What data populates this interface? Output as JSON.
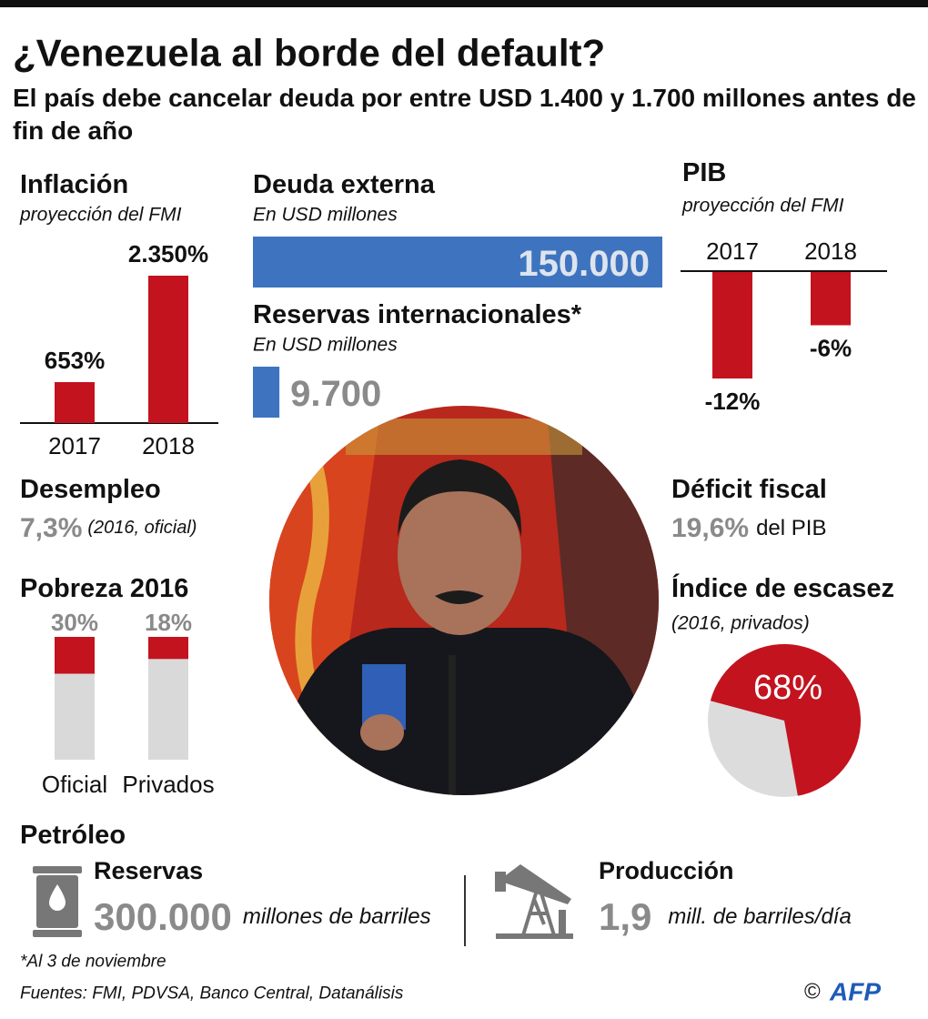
{
  "header": {
    "title": "¿Venezuela al borde del default?",
    "subtitle": "El país debe cancelar deuda por entre USD 1.400 y 1.700 millones antes de fin de año"
  },
  "chart_data": [
    {
      "type": "bar",
      "title": "Inflación",
      "subtitle": "proyección del FMI",
      "categories": [
        "2017",
        "2018"
      ],
      "values": [
        653,
        2350
      ],
      "value_labels": [
        "653%",
        "2.350%"
      ],
      "color": "#c3131f"
    },
    {
      "type": "hbar",
      "categories": [
        "Deuda externa",
        "Reservas internacionales*"
      ],
      "subtitles": [
        "En USD millones",
        "En USD millones"
      ],
      "values": [
        150000,
        9700
      ],
      "value_labels": [
        "150.000",
        "9.700"
      ],
      "color": "#3e74bf"
    },
    {
      "type": "bar",
      "title": "PIB",
      "subtitle": "proyección del FMI",
      "categories": [
        "2017",
        "2018"
      ],
      "values": [
        -12,
        -6
      ],
      "value_labels": [
        "-12%",
        "-6%"
      ],
      "color": "#c3131f"
    },
    {
      "type": "stack",
      "title": "Pobreza 2016",
      "categories": [
        "Oficial",
        "Privados"
      ],
      "values": [
        30,
        18
      ],
      "value_labels": [
        "30%",
        "18%"
      ],
      "color": "#c3131f"
    },
    {
      "type": "pie",
      "title": "Índice de escasez",
      "subtitle": "(2016, privados)",
      "values": [
        68
      ],
      "value_labels": [
        "68%"
      ],
      "color": "#c3131f"
    }
  ],
  "stats": {
    "desempleo": {
      "title": "Desempleo",
      "value": "7,3%",
      "note": "(2016, oficial)"
    },
    "deficit": {
      "title": "Déficit fiscal",
      "value": "19,6%",
      "note": "del PIB"
    }
  },
  "petroleo": {
    "title": "Petróleo",
    "reservas": {
      "label": "Reservas",
      "value": "300.000",
      "unit": "millones de barriles"
    },
    "produccion": {
      "label": "Producción",
      "value": "1,9",
      "unit": "mill. de barriles/día"
    }
  },
  "footer": {
    "note": "*Al 3 de noviembre",
    "sources": "Fuentes: FMI, PDVSA, Banco Central, Datanálisis",
    "copyright": "©",
    "logo": "AFP"
  }
}
